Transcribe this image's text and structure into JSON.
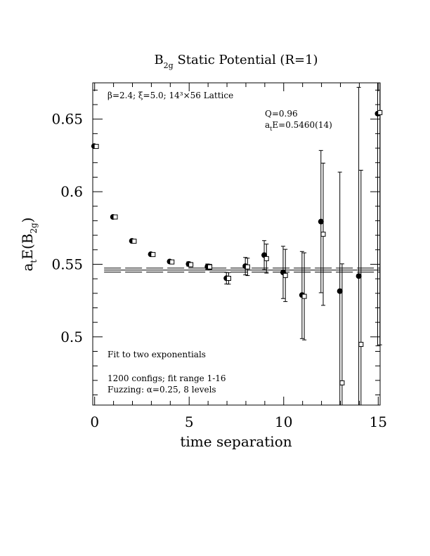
{
  "chart_data": {
    "type": "scatter",
    "title_main": "B",
    "title_sub": "2g",
    "title_rest": " Static Potential (R=1)",
    "xlabel": "time separation",
    "ylabel_main": "a",
    "ylabel_sub1": "t",
    "ylabel_mid": "E(B",
    "ylabel_sub2": "2g",
    "ylabel_end": ")",
    "xlim": [
      -0.1,
      15.1
    ],
    "ylim": [
      0.453,
      0.675
    ],
    "x_ticks": [
      0,
      5,
      10,
      15
    ],
    "x_tick_labels": [
      "0",
      "5",
      "10",
      "15"
    ],
    "y_ticks": [
      0.5,
      0.55,
      0.6,
      0.65
    ],
    "y_tick_labels": [
      "0.5",
      "0.55",
      "0.6",
      "0.65"
    ],
    "annotations": {
      "lattice": "β=2.4; ξ=5.0; 14³×56 Lattice",
      "q_value": "Q=0.96",
      "energy_main": "a",
      "energy_sub": "t",
      "energy_rest": "E=0.5460(14)",
      "fit_method": "Fit to two exponentials",
      "configs": "1200 configs; fit range 1-16",
      "fuzzing": "Fuzzing: α=0.25, 8 levels"
    },
    "fit": {
      "value": 0.546,
      "error": 0.0014,
      "x_range": [
        0.5,
        15.1
      ]
    },
    "series": [
      {
        "marker": "filled-circle",
        "x": [
          0,
          1,
          2,
          3,
          4,
          5,
          6,
          7,
          8,
          9,
          10,
          11,
          12,
          13,
          14,
          15
        ],
        "y": [
          0.6314,
          0.5826,
          0.5661,
          0.5569,
          0.5519,
          0.5502,
          0.5484,
          0.5404,
          0.5487,
          0.5563,
          0.5444,
          0.5288,
          0.5794,
          0.5315,
          0.5419,
          0.6538
        ],
        "err": [
          0.0006,
          0.0006,
          0.0008,
          0.001,
          0.0012,
          0.0015,
          0.0018,
          0.004,
          0.006,
          0.01,
          0.018,
          0.03,
          0.049,
          0.082,
          0.13,
          0.16
        ]
      },
      {
        "marker": "open-square",
        "x": [
          0,
          1,
          2,
          3,
          4,
          5,
          6,
          7,
          8,
          9,
          10,
          11,
          12,
          13,
          14,
          15
        ],
        "y": [
          0.6312,
          0.5826,
          0.5659,
          0.5567,
          0.5516,
          0.5497,
          0.5482,
          0.5403,
          0.5482,
          0.5539,
          0.5423,
          0.5279,
          0.5707,
          0.4683,
          0.4948,
          0.6545
        ],
        "err": [
          0.0006,
          0.0006,
          0.0008,
          0.001,
          0.0012,
          0.0015,
          0.0018,
          0.004,
          0.006,
          0.01,
          0.018,
          0.03,
          0.049,
          0.082,
          0.12,
          0.16
        ]
      }
    ]
  }
}
